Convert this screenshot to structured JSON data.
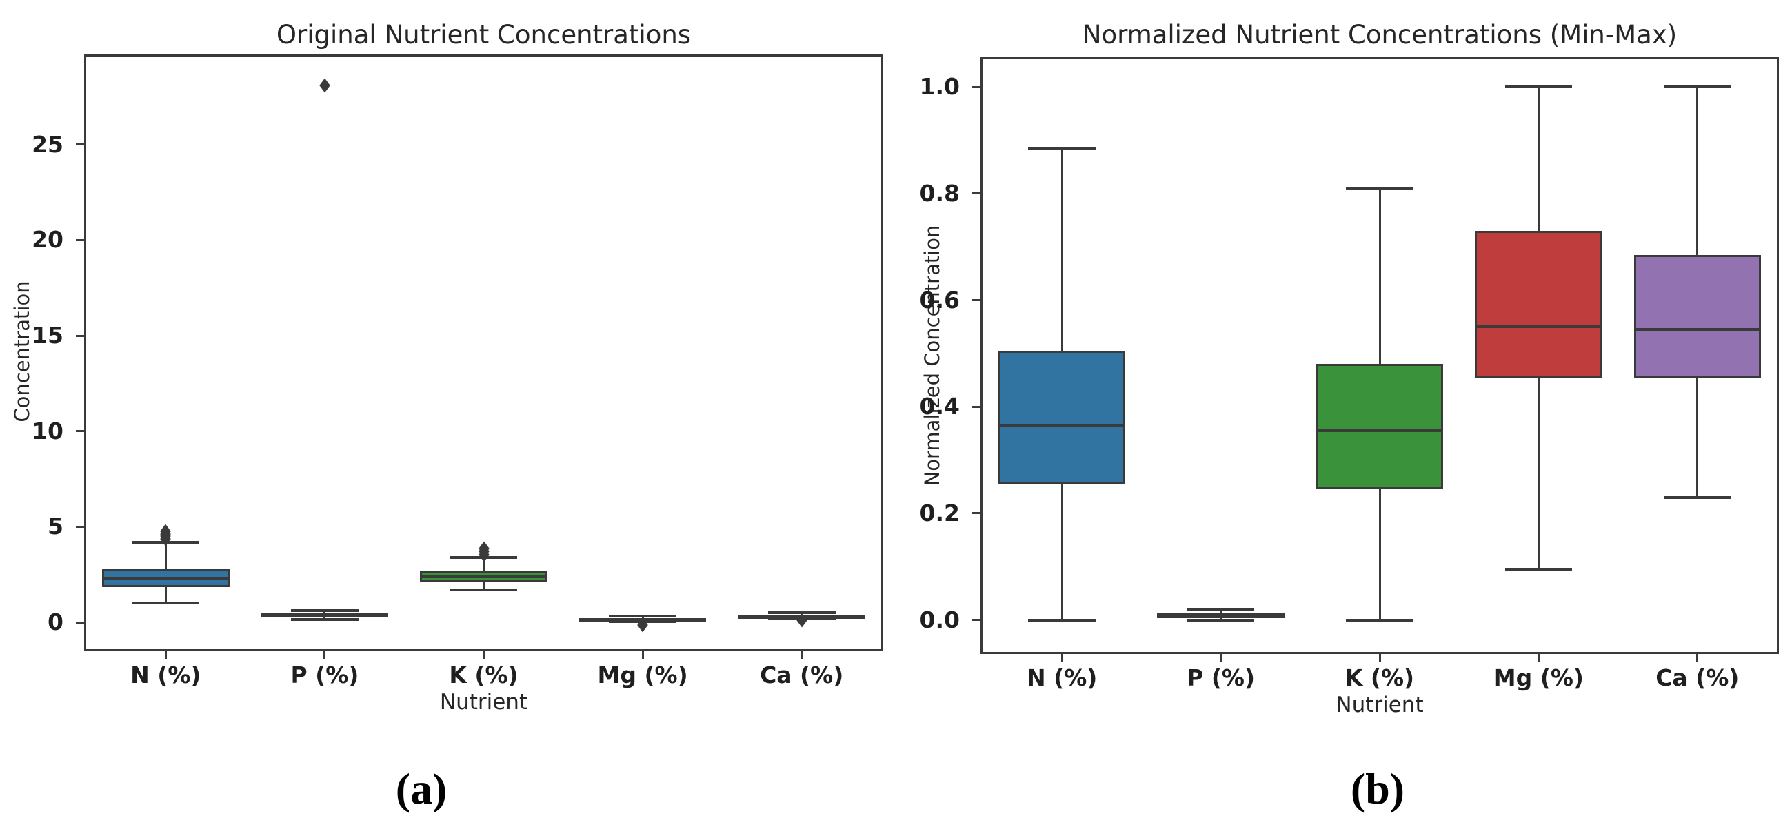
{
  "figure": {
    "background": "#ffffff",
    "text_color": "#1f1f1f",
    "box_edge_color": "#3a3a3a"
  },
  "chart_data": [
    {
      "type": "box",
      "title": "Original Nutrient Concentrations",
      "xlabel": "Nutrient",
      "ylabel": "Concentration",
      "sub_label": "(a)",
      "categories": [
        "N (%)",
        "P (%)",
        "K (%)",
        "Mg (%)",
        "Ca (%)"
      ],
      "ylim": [
        -1.4,
        29.6
      ],
      "yticks": [
        0,
        5,
        10,
        15,
        20,
        25
      ],
      "ytick_labels": [
        "0",
        "5",
        "10",
        "15",
        "20",
        "25"
      ],
      "grid": false,
      "legend": null,
      "series": [
        {
          "label": "N (%)",
          "color": "#3274a1",
          "whislo": 1.0,
          "q1": 1.85,
          "med": 2.3,
          "q3": 2.8,
          "whishi": 4.2,
          "outliers": [
            4.35,
            4.5,
            4.62,
            4.75
          ]
        },
        {
          "label": "P (%)",
          "color": "#e1812c",
          "whislo": 0.15,
          "q1": 0.28,
          "med": 0.38,
          "q3": 0.5,
          "whishi": 0.63,
          "outliers": [
            28.1
          ]
        },
        {
          "label": "K (%)",
          "color": "#3a923a",
          "whislo": 1.7,
          "q1": 2.1,
          "med": 2.4,
          "q3": 2.7,
          "whishi": 3.4,
          "outliers": [
            3.55,
            3.72,
            3.88
          ]
        },
        {
          "label": "Mg (%)",
          "color": "#c03d3d",
          "whislo": 0.03,
          "q1": 0.1,
          "med": 0.15,
          "q3": 0.22,
          "whishi": 0.32,
          "outliers": [
            -0.15
          ]
        },
        {
          "label": "Ca (%)",
          "color": "#9372b2",
          "whislo": 0.18,
          "q1": 0.27,
          "med": 0.33,
          "q3": 0.42,
          "whishi": 0.52,
          "outliers": [
            0.12
          ]
        }
      ]
    },
    {
      "type": "box",
      "title": "Normalized Nutrient Concentrations (Min-Max)",
      "xlabel": "Nutrient",
      "ylabel": "Normalized Concentration",
      "sub_label": "(b)",
      "categories": [
        "N (%)",
        "P (%)",
        "K (%)",
        "Mg (%)",
        "Ca (%)"
      ],
      "ylim": [
        -0.06,
        1.052
      ],
      "yticks": [
        0.0,
        0.2,
        0.4,
        0.6,
        0.8,
        1.0
      ],
      "ytick_labels": [
        "0.0",
        "0.2",
        "0.4",
        "0.6",
        "0.8",
        "1.0"
      ],
      "grid": false,
      "legend": null,
      "series": [
        {
          "label": "N (%)",
          "color": "#3274a1",
          "whislo": 0.0,
          "q1": 0.255,
          "med": 0.365,
          "q3": 0.505,
          "whishi": 0.885,
          "outliers": []
        },
        {
          "label": "P (%)",
          "color": "#e1812c",
          "whislo": 0.0,
          "q1": 0.003,
          "med": 0.007,
          "q3": 0.012,
          "whishi": 0.02,
          "outliers": []
        },
        {
          "label": "K (%)",
          "color": "#3a923a",
          "whislo": 0.0,
          "q1": 0.245,
          "med": 0.355,
          "q3": 0.48,
          "whishi": 0.81,
          "outliers": []
        },
        {
          "label": "Mg (%)",
          "color": "#c03d3d",
          "whislo": 0.095,
          "q1": 0.455,
          "med": 0.55,
          "q3": 0.73,
          "whishi": 1.0,
          "outliers": []
        },
        {
          "label": "Ca (%)",
          "color": "#9372b2",
          "whislo": 0.23,
          "q1": 0.455,
          "med": 0.545,
          "q3": 0.685,
          "whishi": 1.0,
          "outliers": []
        }
      ]
    }
  ]
}
